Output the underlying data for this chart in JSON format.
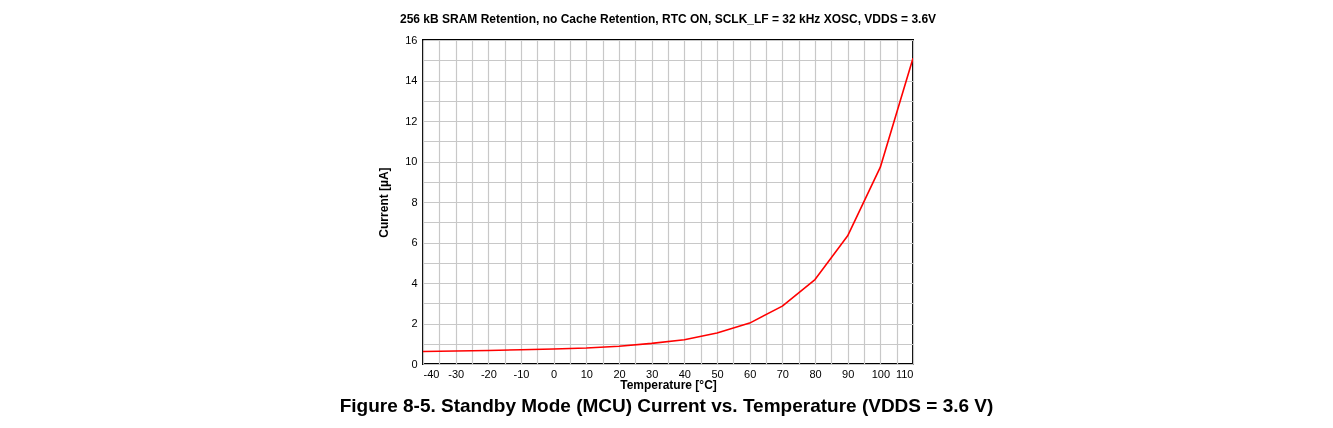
{
  "chart_data": {
    "type": "line",
    "title": "256 kB SRAM Retention, no Cache Retention, RTC ON, SCLK_LF = 32 kHz XOSC, VDDS = 3.6V",
    "xlabel": "Temperature [°C]",
    "ylabel": "Current [µA]",
    "x": [
      -40,
      -30,
      -20,
      -10,
      0,
      10,
      20,
      30,
      40,
      50,
      60,
      70,
      80,
      90,
      100,
      110
    ],
    "series": [
      {
        "color": "#ff0000",
        "values": [
          0.62,
          0.64,
          0.67,
          0.7,
          0.74,
          0.79,
          0.88,
          1.02,
          1.2,
          1.53,
          2.02,
          2.86,
          4.17,
          6.33,
          9.72,
          15.1
        ]
      }
    ],
    "xlim": [
      -40,
      110
    ],
    "xticks": [
      -40,
      {
        "value": -35,
        "label": null
      },
      -30,
      {
        "value": -25,
        "label": null
      },
      -20,
      {
        "value": -15,
        "label": null
      },
      -10,
      {
        "value": -5,
        "label": null
      },
      0,
      {
        "value": 5,
        "label": null
      },
      10,
      {
        "value": 15,
        "label": null
      },
      20,
      {
        "value": 25,
        "label": null
      },
      30,
      {
        "value": 35,
        "label": null
      },
      40,
      {
        "value": 45,
        "label": null
      },
      50,
      {
        "value": 55,
        "label": null
      },
      60,
      {
        "value": 65,
        "label": null
      },
      70,
      {
        "value": 75,
        "label": null
      },
      80,
      {
        "value": 85,
        "label": null
      },
      90,
      {
        "value": 95,
        "label": null
      },
      100,
      {
        "value": 105,
        "label": null
      },
      110
    ],
    "ylim": [
      0,
      16
    ],
    "yticks": [
      0,
      {
        "value": 1,
        "label": null
      },
      2,
      {
        "value": 3,
        "label": null
      },
      4,
      {
        "value": 5,
        "label": null
      },
      6,
      {
        "value": 7,
        "label": null
      },
      8,
      {
        "value": 9,
        "label": null
      },
      10,
      {
        "value": 11,
        "label": null
      },
      12,
      {
        "value": 13,
        "label": null
      },
      14,
      {
        "value": 15,
        "label": null
      },
      16
    ],
    "grid": true,
    "marker": "none",
    "line_style": "solid",
    "annotations": [
      "Figure 8-5. Standby Mode (MCU) Current vs. Temperature (VDDS = 3.6 V)"
    ]
  }
}
